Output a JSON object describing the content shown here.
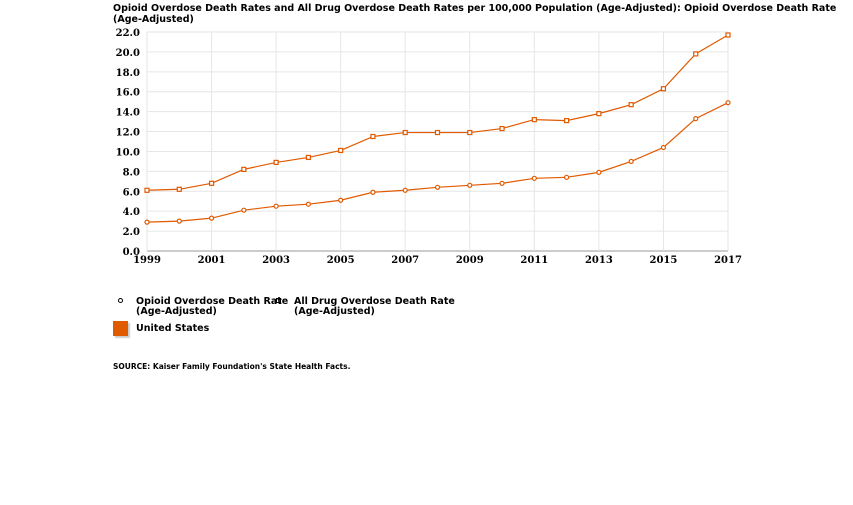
{
  "title": "Opioid Overdose Death Rates and All Drug Overdose Death Rates per 100,000 Population (Age-Adjusted): Opioid Overdose Death Rate (Age-Adjusted)",
  "chart_data": {
    "type": "line",
    "title": "Opioid Overdose Death Rates and All Drug Overdose Death Rates per 100,000 Population (Age-Adjusted)",
    "x": [
      1999,
      2000,
      2001,
      2002,
      2003,
      2004,
      2005,
      2006,
      2007,
      2008,
      2009,
      2010,
      2011,
      2012,
      2013,
      2014,
      2015,
      2016,
      2017
    ],
    "xticks": [
      "1999",
      "2001",
      "2003",
      "2005",
      "2007",
      "2009",
      "2011",
      "2013",
      "2015",
      "2017"
    ],
    "yticks": [
      "0.0",
      "2.0",
      "4.0",
      "6.0",
      "8.0",
      "10.0",
      "12.0",
      "14.0",
      "16.0",
      "18.0",
      "20.0",
      "22.0"
    ],
    "ylim": [
      0,
      22
    ],
    "grid": true,
    "color": "#e05a00",
    "series": [
      {
        "name": "Opioid Overdose Death Rate (Age-Adjusted)",
        "marker": "circle",
        "values": [
          2.9,
          3.0,
          3.3,
          4.1,
          4.5,
          4.7,
          5.1,
          5.9,
          6.1,
          6.4,
          6.6,
          6.8,
          7.3,
          7.4,
          7.9,
          9.0,
          10.4,
          13.3,
          14.9
        ]
      },
      {
        "name": "All Drug Overdose Death Rate (Age-Adjusted)",
        "marker": "square",
        "values": [
          6.1,
          6.2,
          6.8,
          8.2,
          8.9,
          9.4,
          10.1,
          11.5,
          11.9,
          11.9,
          11.9,
          12.3,
          13.2,
          13.1,
          13.8,
          14.7,
          16.3,
          19.8,
          21.7
        ]
      }
    ],
    "legend": {
      "position": "bottom-left",
      "series_labels": [
        "Opioid Overdose Death Rate (Age-Adjusted)",
        "All Drug Overdose Death Rate (Age-Adjusted)"
      ],
      "location_label": "United States"
    }
  },
  "legend": {
    "opioid_line1": "Opioid Overdose Death Rate",
    "opioid_line2": "(Age-Adjusted)",
    "all_line1": "All Drug Overdose Death Rate",
    "all_line2": "(Age-Adjusted)",
    "location": "United States"
  },
  "source": "SOURCE: Kaiser Family Foundation's State Health Facts."
}
